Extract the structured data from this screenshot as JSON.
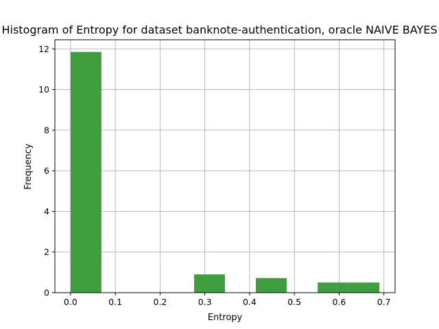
{
  "chart_data": {
    "type": "bar",
    "title": "Histogram of Entropy for dataset banknote-authentication, oracle NAIVE BAYES",
    "xlabel": "Entropy",
    "ylabel": "Frequency",
    "xlim": [
      -0.035,
      0.725
    ],
    "ylim": [
      0,
      12.45
    ],
    "xticks": [
      "0.0",
      "0.1",
      "0.2",
      "0.3",
      "0.4",
      "0.5",
      "0.6",
      "0.7"
    ],
    "yticks": [
      "0",
      "2",
      "4",
      "6",
      "8",
      "10",
      "12"
    ],
    "grid": true,
    "bar_color": "#3f9f3f",
    "bins": [
      {
        "x0": 0.0,
        "x1": 0.069,
        "value": 11.85
      },
      {
        "x0": 0.276,
        "x1": 0.345,
        "value": 0.9
      },
      {
        "x0": 0.414,
        "x1": 0.483,
        "value": 0.72
      },
      {
        "x0": 0.552,
        "x1": 0.621,
        "value": 0.5
      },
      {
        "x0": 0.621,
        "x1": 0.69,
        "value": 0.5
      }
    ]
  }
}
